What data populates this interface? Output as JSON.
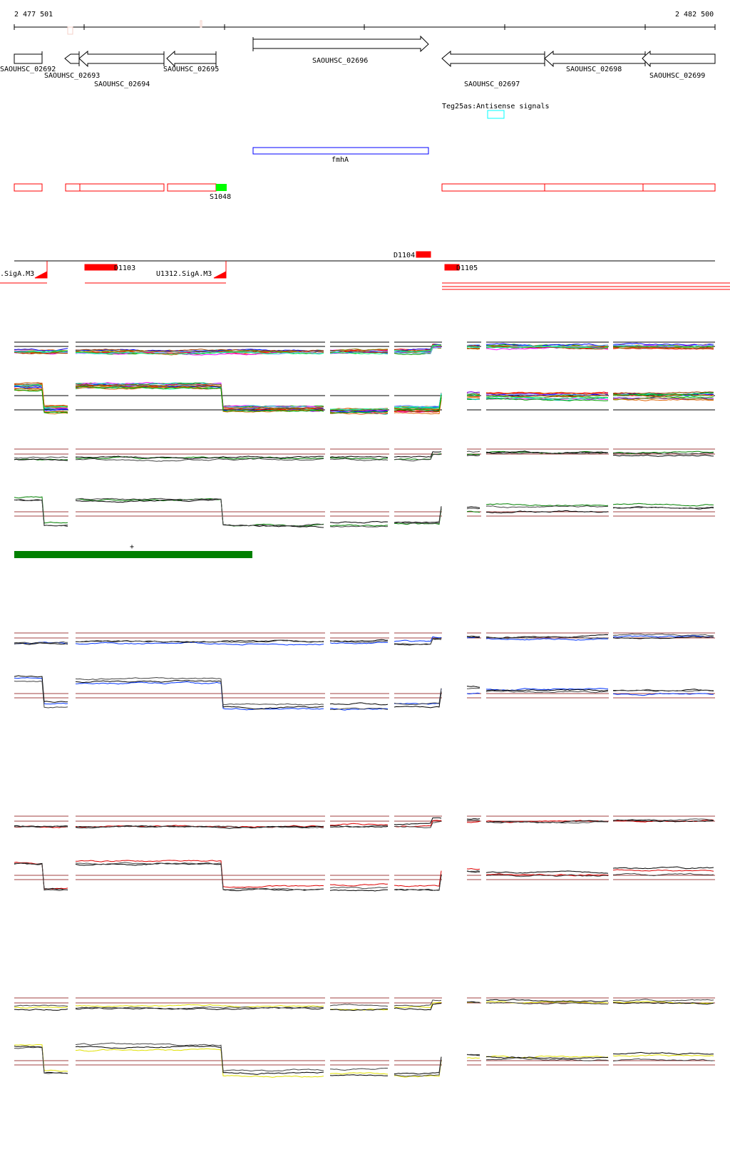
{
  "ruler": {
    "start_label": "2 477 501",
    "end_label": "2 482 500"
  },
  "genes": [
    {
      "label": "SAOUHSC_02692",
      "strand": "+"
    },
    {
      "label": "SAOUHSC_02693",
      "strand": "-"
    },
    {
      "label": "SAOUHSC_02694",
      "strand": "-"
    },
    {
      "label": "SAOUHSC_02695",
      "strand": "-"
    },
    {
      "label": "SAOUHSC_02696",
      "strand": "+"
    },
    {
      "label": "SAOUHSC_02697",
      "strand": "-"
    },
    {
      "label": "SAOUHSC_02698",
      "strand": "-"
    },
    {
      "label": "SAOUHSC_02699",
      "strand": "-"
    }
  ],
  "antisense_label": "Teg25as:Antisense signals",
  "fmh_label": "fmhA",
  "s_label": "S1048",
  "promoters": {
    "left": ".SigA.M3",
    "mid": "U1312.SigA.M3",
    "d1103": "D1103",
    "d1104": "D1104",
    "d1105": "D1105"
  },
  "plus_marker": "+",
  "colors": {
    "red_feature": "#ff0000",
    "green_feature": "#00ff00",
    "blue_feature": "#0000ff",
    "cyan_feature": "#00ffff",
    "green_track": "#008000",
    "blue_track": "#0033ff",
    "red_track": "#dd0000",
    "yellow_track": "#e0e000",
    "threshold_line": "#a04040"
  }
}
